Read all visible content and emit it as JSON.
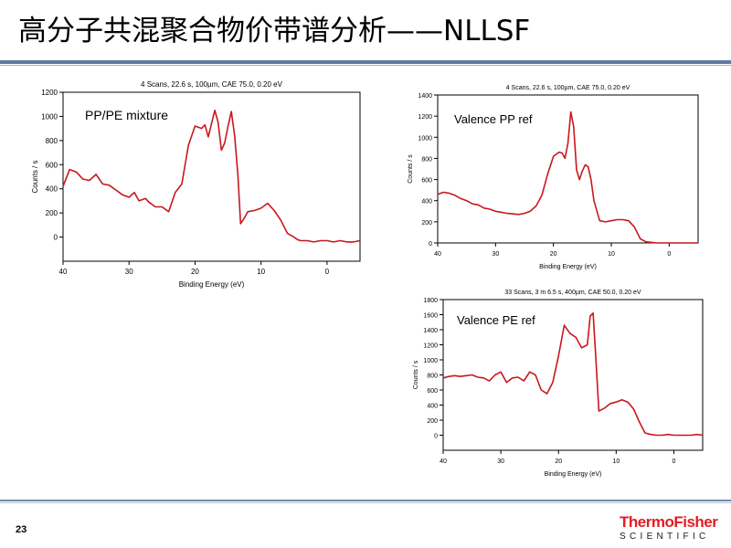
{
  "slide": {
    "title": "高分子共混聚合物价带谱分析——NLLSF",
    "page_number": "23",
    "logo": {
      "brand_top": "ThermoFisher",
      "brand_bottom": "SCIENTIFIC"
    }
  },
  "chart_data": [
    {
      "type": "line",
      "header": "4 Scans,  22.6 s,  100µm,  CAE 75.0,  0.20 eV",
      "annotation": "PP/PE mixture",
      "xlabel": "Binding Energy (eV)",
      "ylabel": "Counts / s",
      "xlim": [
        40,
        -5
      ],
      "ylim": [
        -200,
        1200
      ],
      "xticks": [
        40,
        30,
        20,
        10,
        0
      ],
      "yticks": [
        0,
        200,
        400,
        600,
        800,
        1000,
        1200
      ],
      "line_color": "#c8171e",
      "x": [
        40,
        39,
        38,
        37,
        36,
        35,
        34,
        33,
        32,
        31,
        30,
        29.2,
        28.5,
        27.5,
        27,
        26,
        25,
        24,
        23,
        22,
        21,
        20,
        19,
        18.5,
        18,
        17,
        16.5,
        16,
        15.5,
        15,
        14.5,
        14,
        13.5,
        13.1,
        12.5,
        12,
        11,
        10,
        9,
        8,
        7,
        6,
        5,
        4.5,
        4,
        3,
        2,
        1,
        0,
        -1,
        -2,
        -3,
        -4,
        -5
      ],
      "y": [
        420,
        560,
        540,
        480,
        470,
        520,
        440,
        430,
        390,
        350,
        330,
        370,
        300,
        320,
        290,
        250,
        250,
        210,
        370,
        440,
        760,
        920,
        900,
        930,
        830,
        1050,
        950,
        720,
        780,
        920,
        1040,
        840,
        510,
        110,
        160,
        210,
        220,
        240,
        280,
        220,
        140,
        30,
        0,
        -20,
        -30,
        -30,
        -40,
        -30,
        -30,
        -40,
        -30,
        -40,
        -40,
        -30
      ]
    },
    {
      "type": "line",
      "header": "4 Scans,  22.6 s,  100µm,  CAE 75.0,  0.20 eV",
      "annotation": "Valence PP ref",
      "xlabel": "Binding Energy (eV)",
      "ylabel": "Counts / s",
      "xlim": [
        40,
        -5
      ],
      "ylim": [
        0,
        1400
      ],
      "xticks": [
        40,
        30,
        20,
        10,
        0
      ],
      "yticks": [
        0,
        200,
        400,
        600,
        800,
        1000,
        1200,
        1400
      ],
      "line_color": "#c8171e",
      "x": [
        40,
        39,
        38,
        37,
        36,
        35,
        34,
        33,
        32,
        31,
        30,
        29,
        28,
        27,
        26,
        25,
        24,
        23,
        22,
        21,
        20,
        19,
        18.5,
        18,
        17.5,
        17,
        16.5,
        16,
        15.5,
        15,
        14.5,
        14,
        13.5,
        13,
        12,
        11,
        10,
        9,
        8,
        7,
        6,
        5,
        4,
        3,
        2,
        1,
        0,
        -1,
        -2,
        -3,
        -4,
        -5
      ],
      "y": [
        460,
        480,
        470,
        450,
        420,
        400,
        370,
        360,
        330,
        320,
        300,
        290,
        280,
        275,
        270,
        280,
        300,
        350,
        450,
        650,
        820,
        860,
        850,
        800,
        940,
        1240,
        1100,
        690,
        600,
        680,
        740,
        720,
        600,
        400,
        210,
        200,
        210,
        220,
        220,
        210,
        150,
        40,
        10,
        5,
        0,
        0,
        0,
        0,
        0,
        0,
        0,
        0
      ]
    },
    {
      "type": "line",
      "header": "33 Scans,  3 m 6.5 s,  400µm,  CAE 50.0,  0.20 eV",
      "annotation": "Valence PE ref",
      "xlabel": "Binding Energy (eV)",
      "ylabel": "Counts / s",
      "xlim": [
        40,
        -5
      ],
      "ylim": [
        -200,
        1800
      ],
      "xticks": [
        40,
        30,
        20,
        10,
        0
      ],
      "yticks": [
        0,
        200,
        400,
        600,
        800,
        1000,
        1200,
        1400,
        1600,
        1800
      ],
      "line_color": "#c8171e",
      "x": [
        40,
        39,
        38,
        37,
        36,
        35,
        34,
        33,
        32,
        31,
        30,
        29,
        28,
        27,
        26,
        25,
        24,
        23,
        22,
        21,
        20,
        19,
        18,
        17,
        16,
        15,
        14.5,
        14,
        13.5,
        13,
        12,
        11,
        10,
        9,
        8,
        7,
        6,
        5,
        4,
        3,
        2,
        1,
        0,
        -1,
        -2,
        -3,
        -4,
        -5
      ],
      "y": [
        760,
        780,
        790,
        780,
        790,
        800,
        770,
        760,
        720,
        800,
        840,
        700,
        760,
        770,
        720,
        840,
        800,
        600,
        550,
        700,
        1050,
        1460,
        1350,
        1300,
        1160,
        1200,
        1580,
        1620,
        1000,
        320,
        360,
        420,
        440,
        470,
        440,
        350,
        180,
        30,
        10,
        0,
        0,
        10,
        0,
        0,
        0,
        0,
        10,
        0
      ]
    }
  ]
}
